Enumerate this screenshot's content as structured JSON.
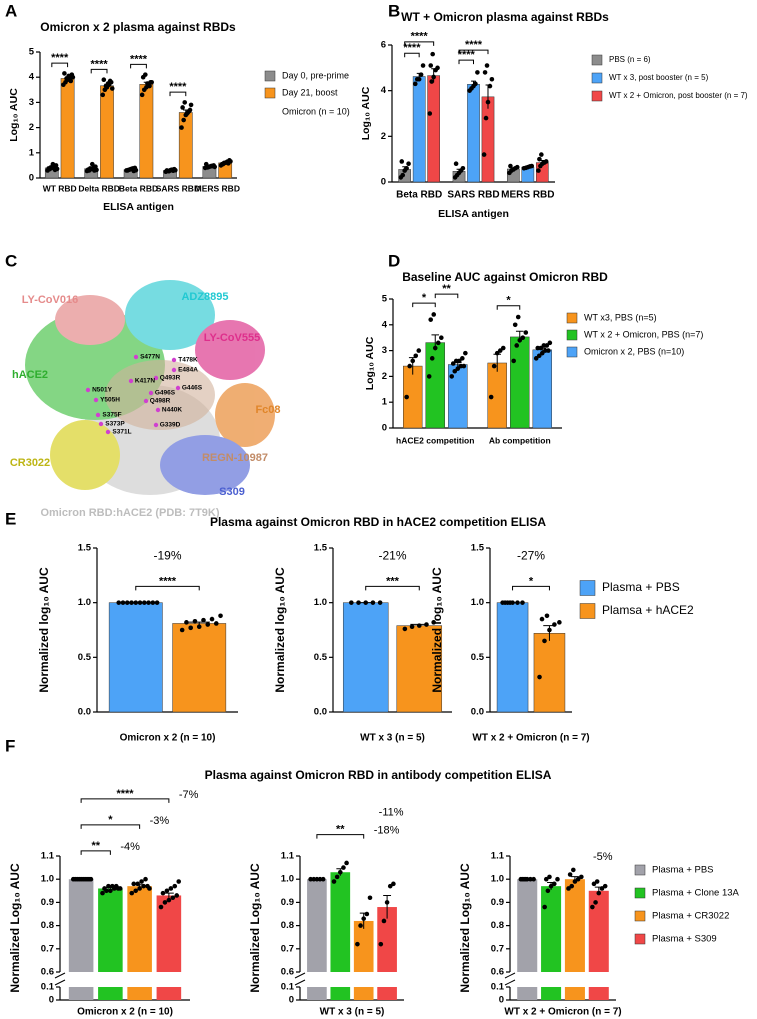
{
  "chart_data": [
    {
      "panel": "A",
      "type": "bar",
      "title": "Omicron x 2 plasma against RBDs",
      "x_label": "ELISA antigen",
      "y_label": "Log₁₀ AUC",
      "categories": [
        "WT RBD",
        "Delta RBD",
        "Beta RBD",
        "SARS RBD",
        "MERS RBD"
      ],
      "series": [
        {
          "name": "Day 0, pre-prime",
          "color": "#8c8c8c",
          "values": [
            0.4,
            0.37,
            0.33,
            0.3,
            0.46
          ],
          "errors": [
            0.03,
            0.03,
            0.01,
            0.01,
            0.02
          ],
          "points": [
            [
              0.3,
              0.35,
              0.4,
              0.45,
              0.5,
              0.38,
              0.42,
              0.55,
              0.32,
              0.36
            ],
            [
              0.28,
              0.3,
              0.35,
              0.4,
              0.45,
              0.33,
              0.38,
              0.55,
              0.3,
              0.32
            ],
            [
              0.3,
              0.32,
              0.35,
              0.38,
              0.4,
              0.3,
              0.33,
              0.36,
              0.28,
              0.31
            ],
            [
              0.25,
              0.28,
              0.3,
              0.33,
              0.35,
              0.3,
              0.27,
              0.32,
              0.29,
              0.31
            ],
            [
              0.4,
              0.42,
              0.45,
              0.48,
              0.5,
              0.55,
              0.43,
              0.46,
              0.47,
              0.44
            ]
          ]
        },
        {
          "name": "Day 21, boost",
          "color": "#f7941d",
          "values": [
            3.95,
            3.66,
            3.72,
            2.6,
            0.6
          ],
          "errors": [
            0.05,
            0.06,
            0.08,
            0.1,
            0.02
          ],
          "points": [
            [
              3.7,
              3.8,
              3.9,
              4.0,
              4.1,
              4.15,
              3.95,
              4.05,
              3.85,
              4.0
            ],
            [
              3.3,
              3.5,
              3.6,
              3.7,
              3.8,
              3.9,
              3.65,
              3.75,
              3.85,
              3.55
            ],
            [
              3.3,
              3.5,
              3.6,
              3.7,
              3.8,
              4.0,
              4.1,
              3.75,
              3.65,
              3.8
            ],
            [
              2.0,
              2.3,
              2.5,
              2.6,
              2.7,
              2.8,
              3.0,
              2.55,
              2.65,
              2.9
            ],
            [
              0.5,
              0.55,
              0.6,
              0.65,
              0.7,
              0.55,
              0.6,
              0.62,
              0.58,
              0.66
            ]
          ]
        }
      ],
      "ylim": [
        0,
        5
      ],
      "yticks": [
        0,
        1,
        2,
        3,
        4,
        5
      ],
      "legend": "right",
      "legend_note": "Omicron (n = 10)",
      "annotations": [
        {
          "category": 0,
          "from": 0,
          "to": 1,
          "text": "****"
        },
        {
          "category": 1,
          "from": 0,
          "to": 1,
          "text": "****"
        },
        {
          "category": 2,
          "from": 0,
          "to": 1,
          "text": "****"
        },
        {
          "category": 3,
          "from": 0,
          "to": 1,
          "text": "****"
        }
      ]
    },
    {
      "panel": "B",
      "type": "bar",
      "title": "WT + Omicron plasma against RBDs",
      "x_label": "ELISA antigen",
      "y_label": "Log₁₀ AUC",
      "categories": [
        "Beta RBD",
        "SARS RBD",
        "MERS RBD"
      ],
      "series": [
        {
          "name": "PBS (n = 6)",
          "color": "#8c8c8c",
          "values": [
            0.55,
            0.47,
            0.57
          ],
          "errors": [
            0.12,
            0.09,
            0.05
          ],
          "points": [
            [
              0.2,
              0.3,
              0.5,
              0.6,
              0.8,
              0.9
            ],
            [
              0.2,
              0.3,
              0.4,
              0.5,
              0.6,
              0.8
            ],
            [
              0.4,
              0.5,
              0.55,
              0.6,
              0.65,
              0.7
            ]
          ]
        },
        {
          "name": "WT x 3, post booster (n = 5)",
          "color": "#4da3f7",
          "values": [
            4.62,
            4.28,
            0.65
          ],
          "errors": [
            0.14,
            0.14,
            0.02
          ],
          "points": [
            [
              4.3,
              4.5,
              4.5,
              4.7,
              5.1
            ],
            [
              4.0,
              4.1,
              4.2,
              4.3,
              4.8
            ],
            [
              0.6,
              0.62,
              0.65,
              0.68,
              0.7
            ]
          ]
        },
        {
          "name": "WT x 2 + Omicron, post booster (n = 7)",
          "color": "#f04747",
          "values": [
            4.66,
            3.73,
            0.85
          ],
          "errors": [
            0.3,
            0.52,
            0.09
          ],
          "points": [
            [
              3.0,
              4.4,
              4.6,
              4.9,
              5.0,
              5.1,
              5.6
            ],
            [
              1.2,
              2.8,
              3.5,
              4.2,
              4.5,
              4.8,
              5.1
            ],
            [
              0.5,
              0.7,
              0.8,
              0.85,
              0.9,
              1.0,
              1.2
            ]
          ]
        }
      ],
      "ylim": [
        0,
        6
      ],
      "yticks": [
        0,
        2,
        4,
        6
      ],
      "legend": "right",
      "annotations": [
        {
          "category": 0,
          "from": 0,
          "to": 1,
          "text": "****"
        },
        {
          "category": 0,
          "from": 0,
          "to": 2,
          "text": "****"
        },
        {
          "category": 1,
          "from": 0,
          "to": 1,
          "text": "****"
        },
        {
          "category": 1,
          "from": 0,
          "to": 2,
          "text": "****"
        }
      ]
    },
    {
      "panel": "D",
      "type": "bar",
      "title": "Baseline AUC against Omicron RBD",
      "y_label": "Log₁₀ AUC",
      "categories": [
        "hACE2 competition",
        "Ab competition"
      ],
      "series": [
        {
          "name": "WT x3, PBS (n=5)",
          "color": "#f7941d",
          "values": [
            2.4,
            2.52
          ],
          "errors": [
            0.33,
            0.34
          ],
          "points": [
            [
              1.2,
              2.4,
              2.6,
              2.8,
              3.0
            ],
            [
              1.2,
              2.4,
              2.9,
              3.0,
              3.1
            ]
          ]
        },
        {
          "name": "WT x 2 + Omicron, PBS (n=7)",
          "color": "#22c322",
          "values": [
            3.31,
            3.53
          ],
          "errors": [
            0.3,
            0.22
          ],
          "points": [
            [
              2.0,
              2.7,
              3.1,
              3.3,
              3.5,
              4.2,
              4.4
            ],
            [
              2.6,
              3.2,
              3.4,
              3.5,
              3.7,
              4.0,
              4.3
            ]
          ]
        },
        {
          "name": "Omicron x 2, PBS (n=10)",
          "color": "#4da3f7",
          "values": [
            2.46,
            3.03
          ],
          "errors": [
            0.08,
            0.06
          ],
          "points": [
            [
              2.0,
              2.2,
              2.3,
              2.4,
              2.4,
              2.5,
              2.6,
              2.6,
              2.7,
              2.9
            ],
            [
              2.7,
              2.8,
              2.9,
              3.0,
              3.0,
              3.1,
              3.1,
              3.2,
              3.2,
              3.3
            ]
          ]
        }
      ],
      "ylim": [
        0,
        5
      ],
      "yticks": [
        0,
        1,
        2,
        3,
        4,
        5
      ],
      "legend": "right",
      "annotations": [
        {
          "category": 0,
          "from": 0,
          "to": 1,
          "text": "*"
        },
        {
          "category": 0,
          "from": 1,
          "to": 2,
          "text": "**"
        },
        {
          "category": 1,
          "from": 0,
          "to": 1,
          "text": "*"
        }
      ]
    },
    {
      "panel": "E",
      "type": "bar",
      "facet": true,
      "title": "Plasma against Omicron RBD in hACE2 competition ELISA",
      "y_label": "Normalized log₁₀ AUC",
      "categories": [
        "Omicron x 2 (n = 10)",
        "WT x 3 (n = 5)",
        "WT x 2 + Omicron (n = 7)"
      ],
      "series": [
        {
          "name": "Plasma + PBS",
          "color": "#4da3f7",
          "values": [
            1.0,
            1.0,
            1.0
          ],
          "errors": [
            0,
            0,
            0
          ],
          "points": [
            [
              1,
              1,
              1,
              1,
              1,
              1,
              1,
              1,
              1,
              1
            ],
            [
              1,
              1,
              1,
              1,
              1
            ],
            [
              1,
              1,
              1,
              1,
              1,
              1,
              1
            ]
          ]
        },
        {
          "name": "Plamsa + hACE2",
          "color": "#f7941d",
          "values": [
            0.81,
            0.79,
            0.72
          ],
          "errors": [
            0.012,
            0.011,
            0.07
          ],
          "points": [
            [
              0.75,
              0.77,
              0.78,
              0.8,
              0.81,
              0.82,
              0.83,
              0.84,
              0.85,
              0.88
            ],
            [
              0.76,
              0.78,
              0.79,
              0.8,
              0.82
            ],
            [
              0.32,
              0.65,
              0.75,
              0.8,
              0.82,
              0.85,
              0.88
            ]
          ]
        }
      ],
      "ylim": [
        0,
        1.5
      ],
      "yticks": [
        {
          "value": 0,
          "label": "0.0"
        },
        0.5,
        {
          "value": 1,
          "label": "1.0"
        },
        1.5
      ],
      "legend": "right",
      "note_position": "above",
      "annotations": [
        {
          "category": 0,
          "from": 0,
          "to": 1,
          "text": "****",
          "note": "-19%"
        },
        {
          "category": 1,
          "from": 0,
          "to": 1,
          "text": "***",
          "note": "-21%"
        },
        {
          "category": 2,
          "from": 0,
          "to": 1,
          "text": "*",
          "note": "-27%"
        }
      ]
    },
    {
      "panel": "F",
      "type": "bar",
      "facet": true,
      "title": "Plasma against Omicron RBD in antibody competition ELISA",
      "y_label": "Normalized Log₁₀ AUC",
      "categories": [
        "Omicron x 2 (n = 10)",
        "WT x 3 (n = 5)",
        "WT x 2 + Omicron (n = 7)"
      ],
      "series": [
        {
          "name": "Plasma + PBS",
          "color": "#a2a2aa",
          "values": [
            1.0,
            1.0,
            1.0
          ],
          "errors": [
            0,
            0,
            0
          ],
          "points": [
            [
              1,
              1,
              1,
              1,
              1,
              1,
              1,
              1,
              1,
              1
            ],
            [
              1,
              1,
              1,
              1,
              1
            ],
            [
              1,
              1,
              1,
              1,
              1,
              1,
              1
            ]
          ]
        },
        {
          "name": "Plasma + Clone 13A",
          "color": "#22c322",
          "values": [
            0.96,
            1.03,
            0.97
          ],
          "errors": [
            0.004,
            0.015,
            0.016
          ],
          "points": [
            [
              0.94,
              0.95,
              0.95,
              0.96,
              0.96,
              0.96,
              0.97,
              0.97,
              0.97,
              0.96
            ],
            [
              0.99,
              1.01,
              1.03,
              1.05,
              1.07
            ],
            [
              0.88,
              0.95,
              0.97,
              0.98,
              1.0,
              1.0,
              1.01
            ]
          ]
        },
        {
          "name": "Plasma + CR3022",
          "color": "#f7941d",
          "values": [
            0.97,
            0.82,
            1.0
          ],
          "errors": [
            0.006,
            0.034,
            0.011
          ],
          "points": [
            [
              0.94,
              0.95,
              0.96,
              0.97,
              0.97,
              0.98,
              0.98,
              0.99,
              1.0,
              0.96
            ],
            [
              0.72,
              0.8,
              0.83,
              0.85,
              0.92
            ],
            [
              0.96,
              0.97,
              0.99,
              1.0,
              1.01,
              1.02,
              1.04
            ]
          ]
        },
        {
          "name": "Plasma + S309",
          "color": "#f04747",
          "values": [
            0.93,
            0.88,
            0.95
          ],
          "errors": [
            0.01,
            0.05,
            0.016
          ],
          "points": [
            [
              0.88,
              0.9,
              0.91,
              0.92,
              0.93,
              0.94,
              0.95,
              0.96,
              0.97,
              0.99
            ],
            [
              0.72,
              0.82,
              0.9,
              0.97,
              0.98
            ],
            [
              0.88,
              0.9,
              0.94,
              0.96,
              0.97,
              0.98,
              0.99
            ]
          ]
        }
      ],
      "ylim": [
        0.6,
        1.1
      ],
      "yticks": [
        0.6,
        0.7,
        0.8,
        0.9,
        {
          "value": 1,
          "label": "1.0"
        },
        1.1
      ],
      "ybreak": {
        "ylim": [
          0,
          0.1
        ],
        "yticks": [
          0,
          0.1
        ]
      },
      "legend": "right",
      "note_position": "right",
      "annotations": [
        {
          "category": 0,
          "from": 0,
          "to": 1,
          "text": "**",
          "note": "-4%"
        },
        {
          "category": 0,
          "from": 0,
          "to": 2,
          "text": "*",
          "note": "-3%"
        },
        {
          "category": 0,
          "from": 0,
          "to": 3,
          "text": "****",
          "note": "-7%"
        },
        {
          "category": 1,
          "from": 0,
          "to": 2,
          "text": "**",
          "note": "-18%"
        },
        {
          "category": 1,
          "series": 3,
          "note": "-11%"
        },
        {
          "category": 2,
          "series": 3,
          "note": "-5%"
        }
      ]
    }
  ],
  "panel_c": {
    "panel": "C",
    "antibodies": [
      "LY-CoV016",
      "ADZ8895",
      "LY-CoV555",
      "hACE2",
      "Fc08",
      "CR3022",
      "REGN-10987",
      "S309",
      "Omicron RBD:hACE2 (PDB: 7T9K)"
    ],
    "mutations": [
      "S477N",
      "T478K",
      "E484A",
      "Q493R",
      "K417N",
      "G446S",
      "N501Y",
      "G496S",
      "Y505H",
      "Q498R",
      "N440K",
      "S375F",
      "S373P",
      "S371L",
      "G339D"
    ]
  }
}
